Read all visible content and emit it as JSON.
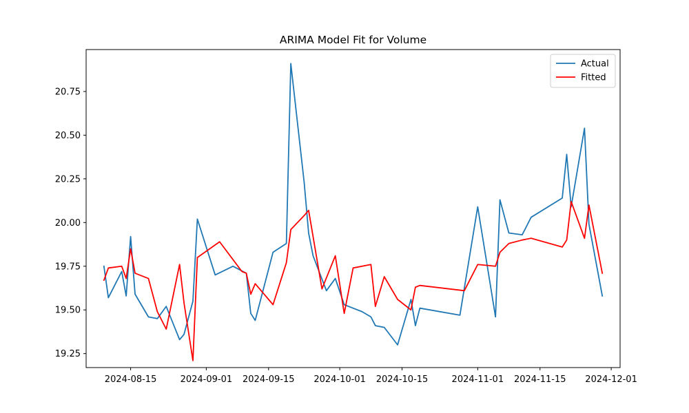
{
  "chart_data": {
    "type": "line",
    "title": "ARIMA Model Fit for Volume",
    "xlabel": "",
    "ylabel": "",
    "xlim": [
      "2024-08-05",
      "2024-12-03"
    ],
    "ylim": [
      19.17,
      20.99
    ],
    "grid": false,
    "legend_position": "top-right",
    "x_ticks": [
      "2024-08-15",
      "2024-09-01",
      "2024-09-15",
      "2024-10-01",
      "2024-10-15",
      "2024-11-01",
      "2024-11-15",
      "2024-12-01"
    ],
    "y_ticks": [
      "19.25",
      "19.50",
      "19.75",
      "20.00",
      "20.25",
      "20.50",
      "20.75"
    ],
    "series": [
      {
        "name": "Actual",
        "color": "#1f77b4",
        "points": [
          [
            "2024-08-09",
            19.75
          ],
          [
            "2024-08-10",
            19.57
          ],
          [
            "2024-08-13",
            19.72
          ],
          [
            "2024-08-14",
            19.58
          ],
          [
            "2024-08-15",
            19.92
          ],
          [
            "2024-08-16",
            19.59
          ],
          [
            "2024-08-19",
            19.46
          ],
          [
            "2024-08-21",
            19.45
          ],
          [
            "2024-08-23",
            19.52
          ],
          [
            "2024-08-26",
            19.33
          ],
          [
            "2024-08-27",
            19.36
          ],
          [
            "2024-08-29",
            19.55
          ],
          [
            "2024-08-30",
            20.02
          ],
          [
            "2024-09-03",
            19.7
          ],
          [
            "2024-09-07",
            19.75
          ],
          [
            "2024-09-10",
            19.71
          ],
          [
            "2024-09-11",
            19.48
          ],
          [
            "2024-09-12",
            19.44
          ],
          [
            "2024-09-16",
            19.83
          ],
          [
            "2024-09-19",
            19.88
          ],
          [
            "2024-09-20",
            20.91
          ],
          [
            "2024-09-23",
            20.23
          ],
          [
            "2024-09-24",
            19.94
          ],
          [
            "2024-09-25",
            19.81
          ],
          [
            "2024-09-28",
            19.61
          ],
          [
            "2024-09-30",
            19.68
          ],
          [
            "2024-10-02",
            19.53
          ],
          [
            "2024-10-06",
            19.49
          ],
          [
            "2024-10-08",
            19.46
          ],
          [
            "2024-10-09",
            19.41
          ],
          [
            "2024-10-11",
            19.4
          ],
          [
            "2024-10-14",
            19.3
          ],
          [
            "2024-10-17",
            19.56
          ],
          [
            "2024-10-18",
            19.41
          ],
          [
            "2024-10-19",
            19.51
          ],
          [
            "2024-10-28",
            19.47
          ],
          [
            "2024-11-01",
            20.09
          ],
          [
            "2024-11-05",
            19.46
          ],
          [
            "2024-11-06",
            20.13
          ],
          [
            "2024-11-08",
            19.94
          ],
          [
            "2024-11-11",
            19.93
          ],
          [
            "2024-11-13",
            20.03
          ],
          [
            "2024-11-20",
            20.14
          ],
          [
            "2024-11-21",
            20.39
          ],
          [
            "2024-11-22",
            20.09
          ],
          [
            "2024-11-25",
            20.54
          ],
          [
            "2024-11-26",
            19.99
          ],
          [
            "2024-11-29",
            19.58
          ]
        ]
      },
      {
        "name": "Fitted",
        "color": "#ff0000",
        "points": [
          [
            "2024-08-09",
            19.67
          ],
          [
            "2024-08-10",
            19.74
          ],
          [
            "2024-08-13",
            19.75
          ],
          [
            "2024-08-14",
            19.68
          ],
          [
            "2024-08-15",
            19.85
          ],
          [
            "2024-08-16",
            19.71
          ],
          [
            "2024-08-19",
            19.68
          ],
          [
            "2024-08-21",
            19.49
          ],
          [
            "2024-08-23",
            19.39
          ],
          [
            "2024-08-26",
            19.76
          ],
          [
            "2024-08-27",
            19.54
          ],
          [
            "2024-08-29",
            19.21
          ],
          [
            "2024-08-30",
            19.8
          ],
          [
            "2024-09-04",
            19.89
          ],
          [
            "2024-09-09",
            19.72
          ],
          [
            "2024-09-10",
            19.71
          ],
          [
            "2024-09-11",
            19.59
          ],
          [
            "2024-09-12",
            19.65
          ],
          [
            "2024-09-16",
            19.53
          ],
          [
            "2024-09-19",
            19.77
          ],
          [
            "2024-09-20",
            19.96
          ],
          [
            "2024-09-23",
            20.04
          ],
          [
            "2024-09-24",
            20.07
          ],
          [
            "2024-09-27",
            19.62
          ],
          [
            "2024-09-30",
            19.81
          ],
          [
            "2024-10-02",
            19.48
          ],
          [
            "2024-10-04",
            19.74
          ],
          [
            "2024-10-08",
            19.76
          ],
          [
            "2024-10-09",
            19.52
          ],
          [
            "2024-10-11",
            19.69
          ],
          [
            "2024-10-14",
            19.56
          ],
          [
            "2024-10-17",
            19.5
          ],
          [
            "2024-10-18",
            19.63
          ],
          [
            "2024-10-19",
            19.64
          ],
          [
            "2024-10-29",
            19.61
          ],
          [
            "2024-11-01",
            19.76
          ],
          [
            "2024-11-05",
            19.75
          ],
          [
            "2024-11-06",
            19.83
          ],
          [
            "2024-11-08",
            19.88
          ],
          [
            "2024-11-11",
            19.9
          ],
          [
            "2024-11-13",
            19.91
          ],
          [
            "2024-11-20",
            19.86
          ],
          [
            "2024-11-21",
            19.9
          ],
          [
            "2024-11-22",
            20.12
          ],
          [
            "2024-11-25",
            19.91
          ],
          [
            "2024-11-26",
            20.1
          ],
          [
            "2024-11-29",
            19.71
          ]
        ]
      }
    ]
  }
}
